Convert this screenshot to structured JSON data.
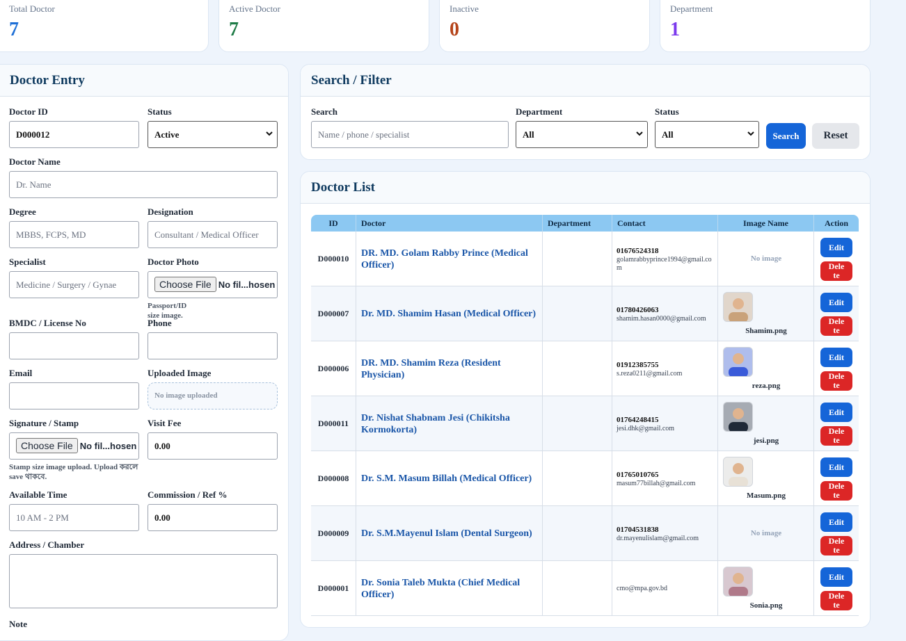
{
  "stats": [
    {
      "label": "Total Doctor",
      "value": 7
    },
    {
      "label": "Active Doctor",
      "value": 7
    },
    {
      "label": "Inactive",
      "value": 0
    },
    {
      "label": "Department",
      "value": 1
    }
  ],
  "entry": {
    "title": "Doctor Entry",
    "fields": [
      {
        "label": "Doctor ID",
        "value": "D000012"
      },
      {
        "label": "Status",
        "value": "Active"
      },
      {
        "label": "Doctor Name",
        "placeholder": "Dr. Name"
      },
      {
        "label": "Degree",
        "placeholder": "MBBS, FCPS, MD"
      },
      {
        "label": "Designation",
        "placeholder": "Consultant / Medical Officer"
      },
      {
        "label": "Specialist",
        "placeholder": "Medicine / Surgery / Gynae"
      },
      {
        "label": "Doctor Photo",
        "button": "Choose File",
        "file": "No fil...hosen",
        "note": "Passport/ID size image."
      },
      {
        "label": "BMDC / License No"
      },
      {
        "label": "Phone"
      },
      {
        "label": "Email"
      },
      {
        "label": "Uploaded Image",
        "box": "No image uploaded"
      },
      {
        "label": "Signature / Stamp",
        "button": "Choose File",
        "file": "No fil...hosen",
        "note": "Stamp size image upload. Upload করলে save থাকবে."
      },
      {
        "label": "Visit Fee",
        "value": "0.00"
      },
      {
        "label": "Available Time",
        "placeholder": "10 AM - 2 PM"
      },
      {
        "label": "Commission / Ref %",
        "value": "0.00"
      },
      {
        "label": "Address / Chamber"
      },
      {
        "label": "Note"
      }
    ]
  },
  "filter": {
    "title": "Search / Filter",
    "search_label": "Search",
    "search_placeholder": "Name / phone / specialist",
    "department_label": "Department",
    "department_value": "All",
    "status_label": "Status",
    "status_value": "All",
    "search_button": "Search",
    "reset_button": "Reset"
  },
  "list": {
    "title": "Doctor List",
    "columns": [
      "ID",
      "Doctor",
      "Department",
      "Contact",
      "Image Name",
      "Action"
    ],
    "edit": "Edit",
    "delete": "Delete",
    "rows": [
      {
        "id": "D000010",
        "doctor": "DR. MD. Golam Rabby Prince (Medical Officer)",
        "phone": "01676524318",
        "email": "golamrabbyprince1994@gmail.com",
        "no_image": "No image"
      },
      {
        "id": "D000007",
        "doctor": "Dr. MD. Shamim Hasan (Medical Officer)",
        "phone": "01780426063",
        "email": "shamim.hasan0000@gmail.com",
        "photo": "Shamim.png"
      },
      {
        "id": "D000006",
        "doctor": "DR. MD. Shamim Reza (Resident Physician)",
        "phone": "01912385755",
        "email": "s.reza0211@gmail.com",
        "photo": "reza.png"
      },
      {
        "id": "D000011",
        "doctor": "Dr. Nishat Shabnam Jesi (Chikitsha Kormokorta)",
        "phone": "01764248415",
        "email": "jesi.dhk@gmail.com",
        "photo": "jesi.png"
      },
      {
        "id": "D000008",
        "doctor": "Dr. S.M. Masum Billah (Medical Officer)",
        "phone": "01765010765",
        "email": "masum77billah@gmail.com",
        "photo": "Masum.png"
      },
      {
        "id": "D000009",
        "doctor": "Dr. S.M.Mayenul Islam (Dental Surgeon)",
        "phone": "01704531838",
        "email": "dr.mayenulislam@gmail.com",
        "no_image": "No image"
      },
      {
        "id": "D000001",
        "doctor": "Dr. Sonia Taleb Mukta (Chief Medical Officer)",
        "email": "cmo@mpa.gov.bd",
        "photo": "Sonia.png"
      }
    ]
  }
}
